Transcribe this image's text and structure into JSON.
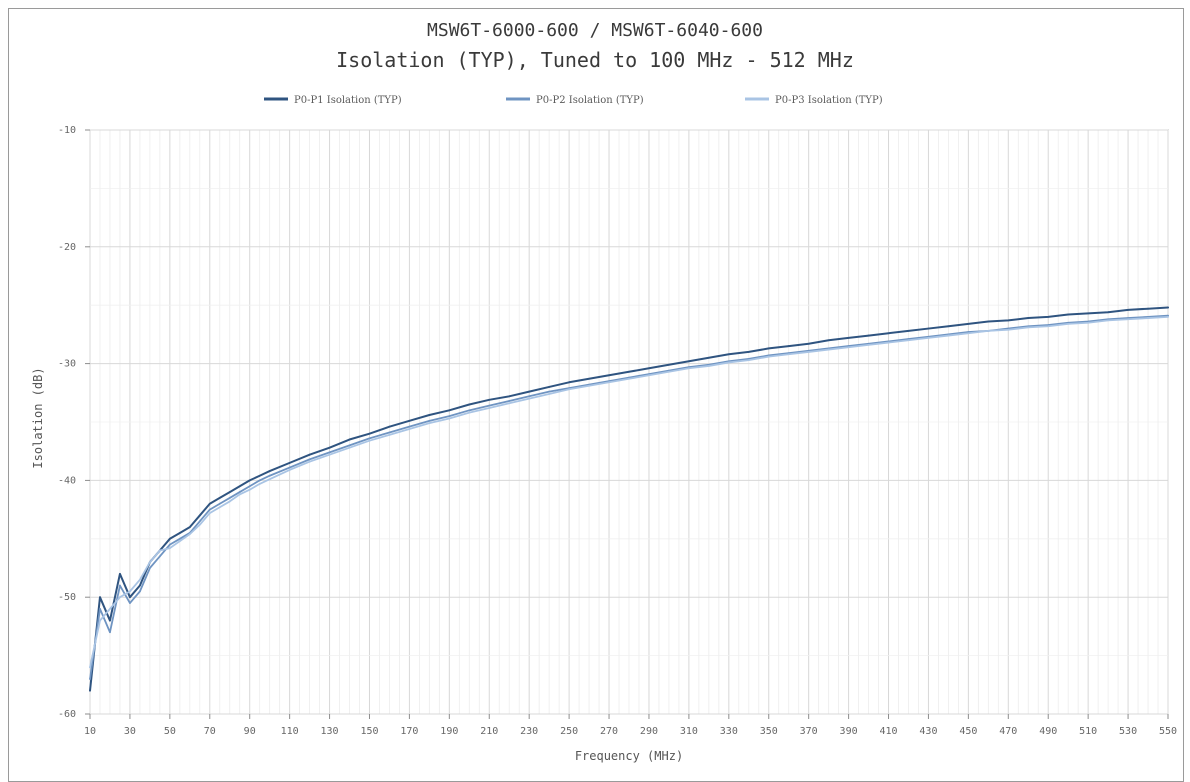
{
  "chart_data": {
    "type": "line",
    "title": "MSW6T-6000-600 / MSW6T-6040-600",
    "subtitle": "Isolation (TYP), Tuned to 100 MHz - 512 MHz",
    "xlabel": "Frequency (MHz)",
    "ylabel": "Isolation (dB)",
    "xlim": [
      10,
      550
    ],
    "ylim": [
      -60,
      -10
    ],
    "xticks": [
      "10",
      "30",
      "50",
      "70",
      "90",
      "110",
      "130",
      "150",
      "170",
      "190",
      "210",
      "230",
      "250",
      "270",
      "290",
      "310",
      "330",
      "350",
      "370",
      "390",
      "410",
      "430",
      "450",
      "470",
      "490",
      "510",
      "530",
      "550"
    ],
    "yticks": [
      "-10",
      "-20",
      "-30",
      "-40",
      "-50",
      "-60"
    ],
    "legend_position": "top",
    "grid": true,
    "series": [
      {
        "name": "P0-P1 Isolation (TYP)",
        "color": "#2f5480",
        "points": [
          [
            10,
            -58
          ],
          [
            15,
            -50
          ],
          [
            20,
            -52
          ],
          [
            25,
            -48
          ],
          [
            30,
            -50
          ],
          [
            35,
            -49
          ],
          [
            40,
            -47
          ],
          [
            45,
            -46
          ],
          [
            50,
            -45
          ],
          [
            55,
            -44.5
          ],
          [
            60,
            -44
          ],
          [
            65,
            -43
          ],
          [
            70,
            -42
          ],
          [
            75,
            -41.5
          ],
          [
            80,
            -41
          ],
          [
            85,
            -40.5
          ],
          [
            90,
            -40
          ],
          [
            95,
            -39.6
          ],
          [
            100,
            -39.2
          ],
          [
            110,
            -38.5
          ],
          [
            120,
            -37.8
          ],
          [
            130,
            -37.2
          ],
          [
            140,
            -36.5
          ],
          [
            150,
            -36
          ],
          [
            160,
            -35.4
          ],
          [
            170,
            -34.9
          ],
          [
            180,
            -34.4
          ],
          [
            190,
            -34
          ],
          [
            200,
            -33.5
          ],
          [
            210,
            -33.1
          ],
          [
            220,
            -32.8
          ],
          [
            230,
            -32.4
          ],
          [
            240,
            -32
          ],
          [
            250,
            -31.6
          ],
          [
            260,
            -31.3
          ],
          [
            270,
            -31
          ],
          [
            280,
            -30.7
          ],
          [
            290,
            -30.4
          ],
          [
            300,
            -30.1
          ],
          [
            310,
            -29.8
          ],
          [
            320,
            -29.5
          ],
          [
            330,
            -29.2
          ],
          [
            340,
            -29
          ],
          [
            350,
            -28.7
          ],
          [
            360,
            -28.5
          ],
          [
            370,
            -28.3
          ],
          [
            380,
            -28
          ],
          [
            390,
            -27.8
          ],
          [
            400,
            -27.6
          ],
          [
            410,
            -27.4
          ],
          [
            420,
            -27.2
          ],
          [
            430,
            -27
          ],
          [
            440,
            -26.8
          ],
          [
            450,
            -26.6
          ],
          [
            460,
            -26.4
          ],
          [
            470,
            -26.3
          ],
          [
            480,
            -26.1
          ],
          [
            490,
            -26
          ],
          [
            500,
            -25.8
          ],
          [
            510,
            -25.7
          ],
          [
            520,
            -25.6
          ],
          [
            530,
            -25.4
          ],
          [
            540,
            -25.3
          ],
          [
            550,
            -25.2
          ]
        ]
      },
      {
        "name": "P0-P2 Isolation (TYP)",
        "color": "#6f94c2",
        "points": [
          [
            10,
            -57
          ],
          [
            15,
            -51
          ],
          [
            20,
            -53
          ],
          [
            25,
            -49
          ],
          [
            30,
            -50.5
          ],
          [
            35,
            -49.5
          ],
          [
            40,
            -47.5
          ],
          [
            45,
            -46.5
          ],
          [
            50,
            -45.5
          ],
          [
            55,
            -45
          ],
          [
            60,
            -44.5
          ],
          [
            65,
            -43.5
          ],
          [
            70,
            -42.5
          ],
          [
            75,
            -42
          ],
          [
            80,
            -41.5
          ],
          [
            85,
            -41
          ],
          [
            90,
            -40.5
          ],
          [
            95,
            -40
          ],
          [
            100,
            -39.6
          ],
          [
            110,
            -38.9
          ],
          [
            120,
            -38.2
          ],
          [
            130,
            -37.6
          ],
          [
            140,
            -37
          ],
          [
            150,
            -36.4
          ],
          [
            160,
            -35.9
          ],
          [
            170,
            -35.4
          ],
          [
            180,
            -34.9
          ],
          [
            190,
            -34.5
          ],
          [
            200,
            -34
          ],
          [
            210,
            -33.6
          ],
          [
            220,
            -33.2
          ],
          [
            230,
            -32.8
          ],
          [
            240,
            -32.4
          ],
          [
            250,
            -32.1
          ],
          [
            260,
            -31.8
          ],
          [
            270,
            -31.5
          ],
          [
            280,
            -31.2
          ],
          [
            290,
            -30.9
          ],
          [
            300,
            -30.6
          ],
          [
            310,
            -30.3
          ],
          [
            320,
            -30.1
          ],
          [
            330,
            -29.8
          ],
          [
            340,
            -29.6
          ],
          [
            350,
            -29.3
          ],
          [
            360,
            -29.1
          ],
          [
            370,
            -28.9
          ],
          [
            380,
            -28.7
          ],
          [
            390,
            -28.5
          ],
          [
            400,
            -28.3
          ],
          [
            410,
            -28.1
          ],
          [
            420,
            -27.9
          ],
          [
            430,
            -27.7
          ],
          [
            440,
            -27.5
          ],
          [
            450,
            -27.3
          ],
          [
            460,
            -27.2
          ],
          [
            470,
            -27
          ],
          [
            480,
            -26.8
          ],
          [
            490,
            -26.7
          ],
          [
            500,
            -26.5
          ],
          [
            510,
            -26.4
          ],
          [
            520,
            -26.2
          ],
          [
            530,
            -26.1
          ],
          [
            540,
            -26
          ],
          [
            550,
            -25.9
          ]
        ]
      },
      {
        "name": "P0-P3 Isolation (TYP)",
        "color": "#a9c4e4",
        "points": [
          [
            10,
            -56
          ],
          [
            15,
            -52
          ],
          [
            20,
            -51
          ],
          [
            25,
            -50
          ],
          [
            30,
            -49.5
          ],
          [
            35,
            -48.5
          ],
          [
            40,
            -47
          ],
          [
            45,
            -46
          ],
          [
            50,
            -45.8
          ],
          [
            55,
            -45.2
          ],
          [
            60,
            -44.6
          ],
          [
            65,
            -43.8
          ],
          [
            70,
            -42.8
          ],
          [
            75,
            -42.3
          ],
          [
            80,
            -41.8
          ],
          [
            85,
            -41.2
          ],
          [
            90,
            -40.8
          ],
          [
            95,
            -40.3
          ],
          [
            100,
            -39.9
          ],
          [
            110,
            -39.1
          ],
          [
            120,
            -38.4
          ],
          [
            130,
            -37.8
          ],
          [
            140,
            -37.2
          ],
          [
            150,
            -36.6
          ],
          [
            160,
            -36.1
          ],
          [
            170,
            -35.6
          ],
          [
            180,
            -35.1
          ],
          [
            190,
            -34.7
          ],
          [
            200,
            -34.2
          ],
          [
            210,
            -33.8
          ],
          [
            220,
            -33.4
          ],
          [
            230,
            -33
          ],
          [
            240,
            -32.6
          ],
          [
            250,
            -32.2
          ],
          [
            260,
            -31.9
          ],
          [
            270,
            -31.6
          ],
          [
            280,
            -31.3
          ],
          [
            290,
            -31
          ],
          [
            300,
            -30.7
          ],
          [
            310,
            -30.4
          ],
          [
            320,
            -30.2
          ],
          [
            330,
            -29.9
          ],
          [
            340,
            -29.7
          ],
          [
            350,
            -29.4
          ],
          [
            360,
            -29.2
          ],
          [
            370,
            -29
          ],
          [
            380,
            -28.8
          ],
          [
            390,
            -28.6
          ],
          [
            400,
            -28.4
          ],
          [
            410,
            -28.2
          ],
          [
            420,
            -28
          ],
          [
            430,
            -27.8
          ],
          [
            440,
            -27.6
          ],
          [
            450,
            -27.4
          ],
          [
            460,
            -27.2
          ],
          [
            470,
            -27.1
          ],
          [
            480,
            -26.9
          ],
          [
            490,
            -26.8
          ],
          [
            500,
            -26.6
          ],
          [
            510,
            -26.5
          ],
          [
            520,
            -26.3
          ],
          [
            530,
            -26.2
          ],
          [
            540,
            -26.1
          ],
          [
            550,
            -26
          ]
        ]
      }
    ]
  }
}
